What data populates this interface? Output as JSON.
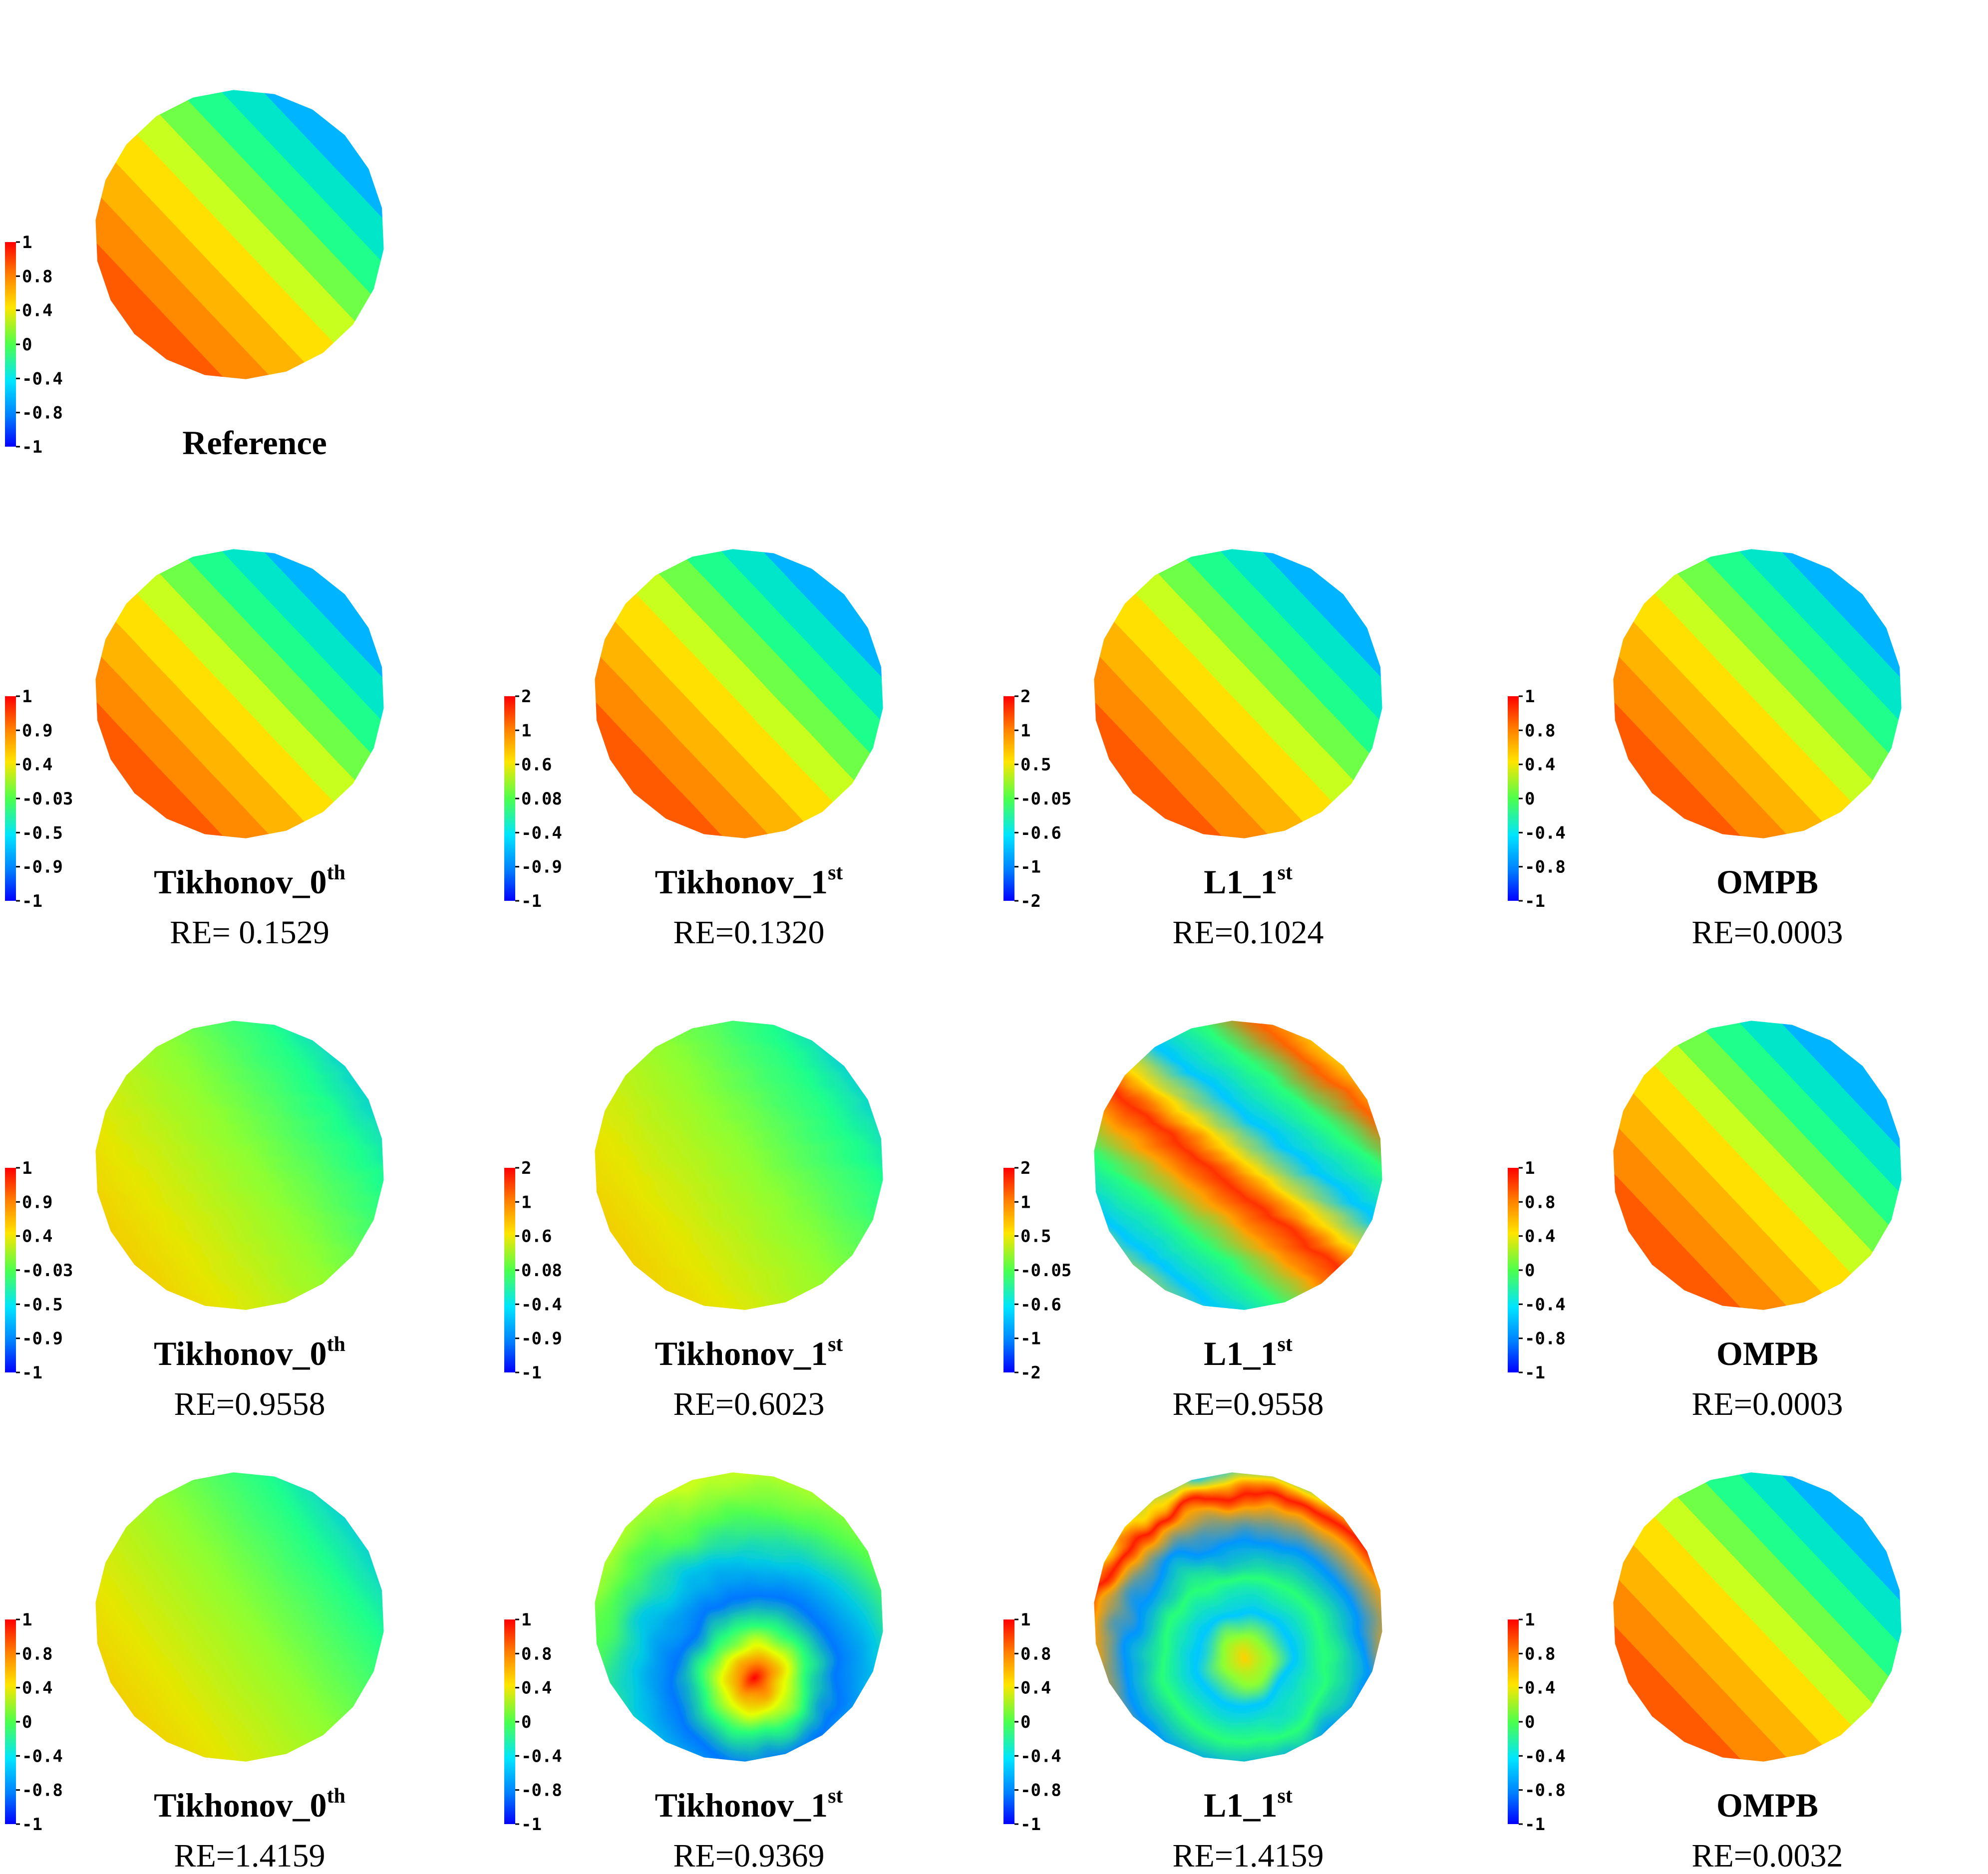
{
  "colors": {
    "jet": [
      "#00007f",
      "#0000ff",
      "#007fff",
      "#00e5ff",
      "#00ff7f",
      "#7fff00",
      "#ffe500",
      "#ff7f00",
      "#ff0000",
      "#c00000"
    ]
  },
  "reference": {
    "title": "Reference",
    "ticks": [
      "1",
      "0.8",
      "0.4",
      "0",
      "-0.4",
      "-0.8",
      "-1"
    ],
    "pattern": "linear"
  },
  "rows": [
    {
      "panels": [
        {
          "title": "Tikhonov_0",
          "sup": "th",
          "re": "RE= 0.1529",
          "ticks": [
            "1",
            "0.9",
            "0.4",
            "-0.03",
            "-0.5",
            "-0.9",
            "-1"
          ],
          "pattern": "stripes-jagged"
        },
        {
          "title": "Tikhonov_1",
          "sup": "st",
          "re": "RE=0.1320",
          "ticks": [
            "2",
            "1",
            "0.6",
            "0.08",
            "-0.4",
            "-0.9",
            "-1"
          ],
          "pattern": "stripes-jagged"
        },
        {
          "title": "L1_1",
          "sup": "st",
          "re": "RE=0.1024",
          "ticks": [
            "2",
            "1",
            "0.5",
            "-0.05",
            "-0.6",
            "-1",
            "-2"
          ],
          "pattern": "stripes-jagged"
        },
        {
          "title": "OMPB",
          "sup": "",
          "re": "RE=0.0003",
          "ticks": [
            "1",
            "0.8",
            "0.4",
            "0",
            "-0.4",
            "-0.8",
            "-1"
          ],
          "pattern": "linear"
        }
      ]
    },
    {
      "panels": [
        {
          "title": "Tikhonov_0",
          "sup": "th",
          "re": "RE=0.9558",
          "ticks": [
            "1",
            "0.9",
            "0.4",
            "-0.03",
            "-0.5",
            "-0.9",
            "-1"
          ],
          "pattern": "zigzag"
        },
        {
          "title": "Tikhonov_1",
          "sup": "st",
          "re": "RE=0.6023",
          "ticks": [
            "2",
            "1",
            "0.6",
            "0.08",
            "-0.4",
            "-0.9",
            "-1"
          ],
          "pattern": "zigzag"
        },
        {
          "title": "L1_1",
          "sup": "st",
          "re": "RE=0.9558",
          "ticks": [
            "2",
            "1",
            "0.5",
            "-0.05",
            "-0.6",
            "-1",
            "-2"
          ],
          "pattern": "bands"
        },
        {
          "title": "OMPB",
          "sup": "",
          "re": "RE=0.0003",
          "ticks": [
            "1",
            "0.8",
            "0.4",
            "0",
            "-0.4",
            "-0.8",
            "-1"
          ],
          "pattern": "linear"
        }
      ]
    },
    {
      "panels": [
        {
          "title": "Tikhonov_0",
          "sup": "th",
          "re": "RE=1.4159",
          "ticks": [
            "1",
            "0.8",
            "0.4",
            "0",
            "-0.4",
            "-0.8",
            "-1"
          ],
          "pattern": "smooth"
        },
        {
          "title": "Tikhonov_1",
          "sup": "st",
          "re": "RE=0.9369",
          "ticks": [
            "1",
            "0.8",
            "0.4",
            "0",
            "-0.4",
            "-0.8",
            "-1"
          ],
          "pattern": "spiral"
        },
        {
          "title": "L1_1",
          "sup": "st",
          "re": "RE=1.4159",
          "ticks": [
            "1",
            "0.8",
            "0.4",
            "0",
            "-0.4",
            "-0.8",
            "-1"
          ],
          "pattern": "spiral-ring"
        },
        {
          "title": "OMPB",
          "sup": "",
          "re": "RE=0.0032",
          "ticks": [
            "1",
            "0.8",
            "0.4",
            "0",
            "-0.4",
            "-0.8",
            "-1"
          ],
          "pattern": "linear"
        }
      ]
    }
  ]
}
